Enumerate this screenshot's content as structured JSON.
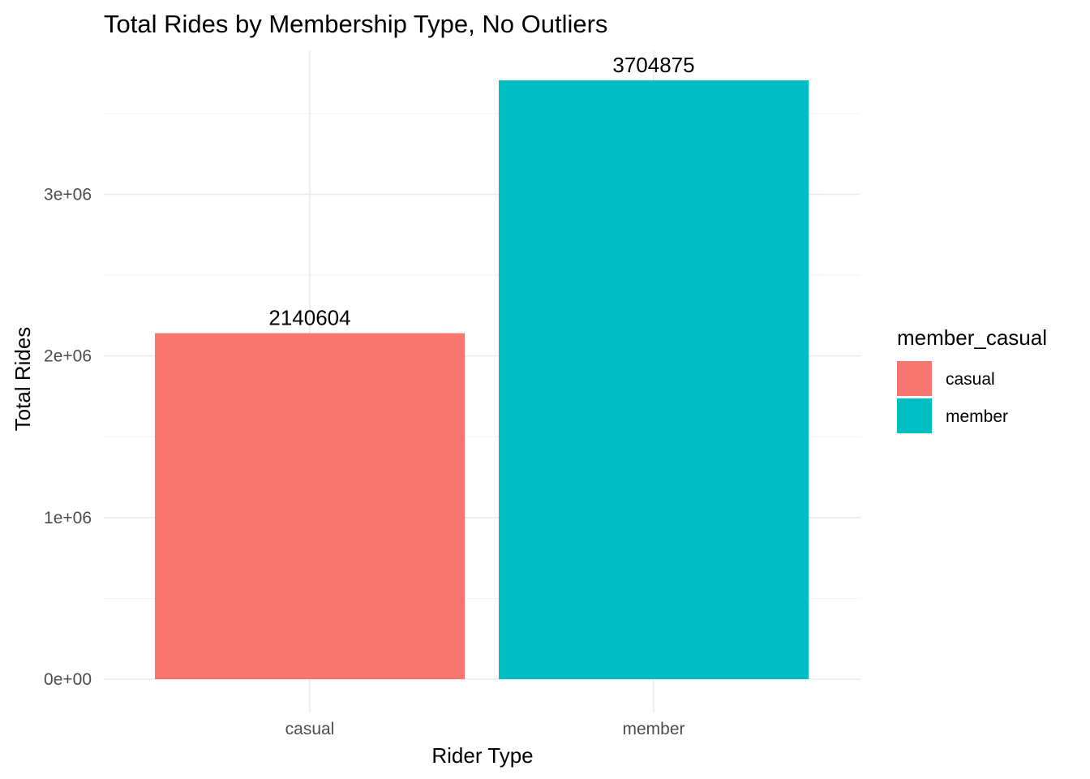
{
  "chart_data": {
    "type": "bar",
    "title": "Total Rides by Membership Type, No Outliers",
    "xlabel": "Rider Type",
    "ylabel": "Total Rides",
    "categories": [
      "casual",
      "member"
    ],
    "values": [
      2140604,
      3704875
    ],
    "data_labels": [
      "2140604",
      "3704875"
    ],
    "colors": [
      "#F8766D",
      "#00BFC4"
    ],
    "ylim": [
      0,
      3704875
    ],
    "y_ticks": [
      {
        "value": 0,
        "label": "0e+00"
      },
      {
        "value": 1000000,
        "label": "1e+06"
      },
      {
        "value": 2000000,
        "label": "2e+06"
      },
      {
        "value": 3000000,
        "label": "3e+06"
      }
    ],
    "grid": true,
    "legend": {
      "title": "member_casual",
      "placement": "right",
      "entries": [
        {
          "label": "casual",
          "color": "#F8766D"
        },
        {
          "label": "member",
          "color": "#00BFC4"
        }
      ]
    }
  }
}
